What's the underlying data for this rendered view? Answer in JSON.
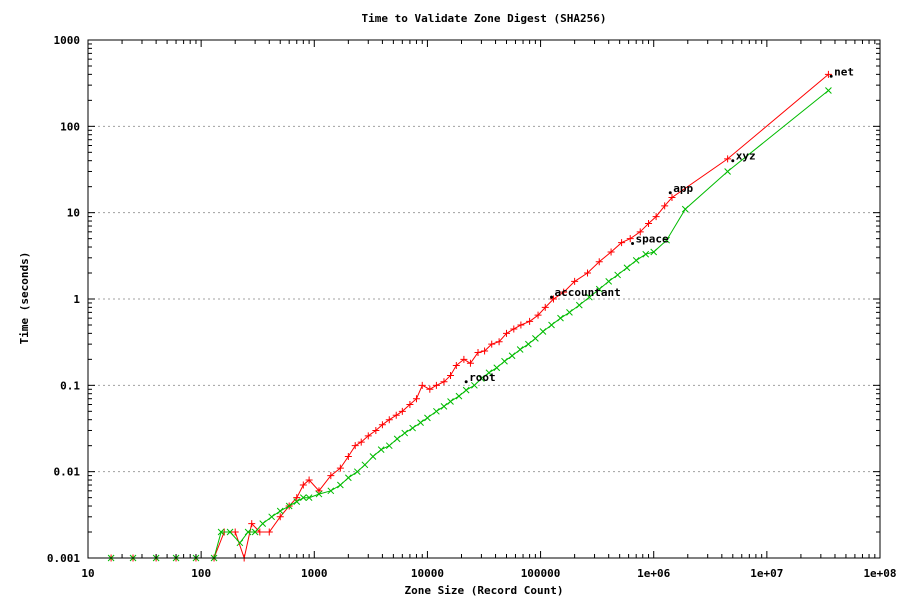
{
  "chart_data": {
    "type": "scatter",
    "title": "Time to Validate Zone Digest (SHA256)",
    "xlabel": "Zone Size (Record Count)",
    "ylabel": "Time (seconds)",
    "xscale": "log",
    "yscale": "log",
    "xlim": [
      10,
      100000000
    ],
    "ylim": [
      0.001,
      1000
    ],
    "grid": "horizontal dotted",
    "legend": "none",
    "x_tick_labels": [
      "10",
      "100",
      "1000",
      "10000",
      "100000",
      "1e+06",
      "1e+07",
      "1e+08"
    ],
    "y_tick_labels": [
      "0.001",
      "0.01",
      "0.1",
      "1",
      "10",
      "100",
      "1000"
    ],
    "series": [
      {
        "color": "#ff0000",
        "marker": "plus",
        "x": [
          16,
          25,
          40,
          60,
          90,
          130,
          160,
          200,
          240,
          280,
          330,
          400,
          500,
          600,
          700,
          800,
          900,
          1100,
          1400,
          1700,
          2000,
          2300,
          2600,
          3000,
          3500,
          4000,
          4600,
          5300,
          6000,
          7000,
          8000,
          9000,
          10500,
          12000,
          14000,
          16000,
          18000,
          21000,
          24000,
          28000,
          32000,
          37000,
          43000,
          50000,
          58000,
          67000,
          80000,
          95000,
          110000,
          130000,
          160000,
          200000,
          260000,
          330000,
          420000,
          520000,
          620000,
          760000,
          900000,
          1050000,
          1250000,
          1450000,
          4500000,
          35000000
        ],
        "y": [
          0.001,
          0.001,
          0.001,
          0.001,
          0.001,
          0.001,
          0.002,
          0.002,
          0.001,
          0.0025,
          0.002,
          0.002,
          0.003,
          0.004,
          0.005,
          0.007,
          0.008,
          0.006,
          0.009,
          0.011,
          0.015,
          0.02,
          0.022,
          0.026,
          0.03,
          0.035,
          0.04,
          0.045,
          0.05,
          0.06,
          0.07,
          0.1,
          0.09,
          0.1,
          0.11,
          0.13,
          0.17,
          0.2,
          0.18,
          0.24,
          0.25,
          0.3,
          0.32,
          0.4,
          0.45,
          0.5,
          0.55,
          0.65,
          0.8,
          1.0,
          1.2,
          1.6,
          2.0,
          2.7,
          3.5,
          4.5,
          5.0,
          6.0,
          7.5,
          9.0,
          12.0,
          15.0,
          42.0,
          400.0
        ]
      },
      {
        "color": "#00bb00",
        "marker": "cross",
        "x": [
          16,
          25,
          40,
          60,
          90,
          130,
          150,
          180,
          220,
          260,
          300,
          350,
          420,
          500,
          600,
          700,
          800,
          900,
          1100,
          1400,
          1700,
          2000,
          2400,
          2800,
          3300,
          3900,
          4600,
          5400,
          6300,
          7400,
          8700,
          10000,
          12000,
          14000,
          16000,
          19000,
          22000,
          26000,
          30000,
          35000,
          41000,
          48000,
          56000,
          66000,
          78000,
          90000,
          105000,
          125000,
          150000,
          180000,
          220000,
          270000,
          330000,
          400000,
          480000,
          580000,
          700000,
          850000,
          1000000,
          1300000,
          1900000,
          4500000,
          35000000
        ],
        "y": [
          0.001,
          0.001,
          0.001,
          0.001,
          0.001,
          0.001,
          0.002,
          0.002,
          0.0015,
          0.002,
          0.002,
          0.0025,
          0.003,
          0.0035,
          0.004,
          0.0045,
          0.005,
          0.005,
          0.0055,
          0.006,
          0.007,
          0.0085,
          0.01,
          0.012,
          0.015,
          0.018,
          0.02,
          0.024,
          0.028,
          0.032,
          0.037,
          0.042,
          0.05,
          0.057,
          0.065,
          0.075,
          0.088,
          0.1,
          0.12,
          0.14,
          0.16,
          0.19,
          0.22,
          0.26,
          0.3,
          0.35,
          0.42,
          0.5,
          0.6,
          0.7,
          0.85,
          1.05,
          1.3,
          1.6,
          1.9,
          2.3,
          2.8,
          3.3,
          3.5,
          4.8,
          11.0,
          30.0,
          260.0
        ]
      }
    ],
    "annotations": [
      {
        "label": "net",
        "x": 37000000,
        "y": 380
      },
      {
        "label": "xyz",
        "x": 5000000,
        "y": 40
      },
      {
        "label": "app",
        "x": 1400000,
        "y": 17
      },
      {
        "label": "space",
        "x": 650000,
        "y": 4.4
      },
      {
        "label": "accountant",
        "x": 125000,
        "y": 1.05
      },
      {
        "label": "root",
        "x": 22000,
        "y": 0.11
      }
    ]
  }
}
